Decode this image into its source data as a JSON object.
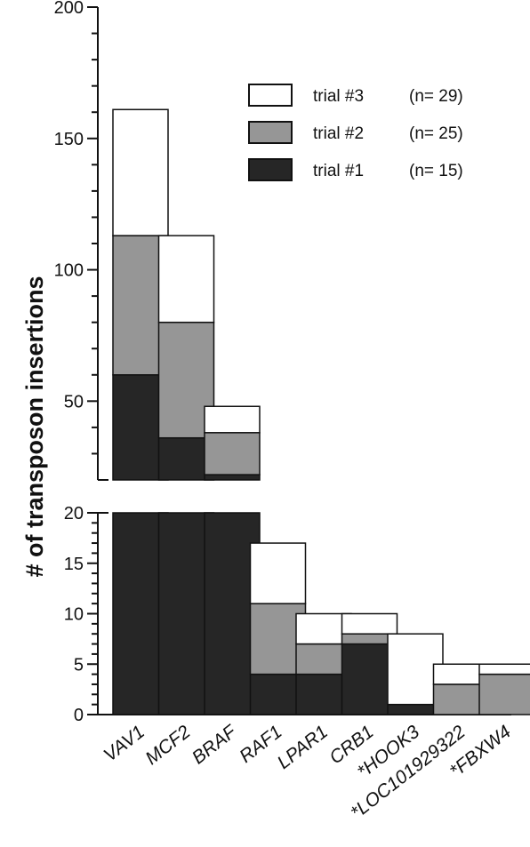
{
  "chart_data": {
    "type": "bar",
    "stacked": true,
    "broken_y_axis": true,
    "ylabel": "# of transposon insertions",
    "xlabel": "",
    "categories": [
      "VAV1",
      "MCF2",
      "BRAF",
      "RAF1",
      "LPAR1",
      "CRB1",
      "*HOOK3",
      "*LOC101929322",
      "*FBXW4"
    ],
    "series": [
      {
        "name": "trial #1",
        "n_label": "(n= 15)",
        "color": "#262626",
        "values": [
          60,
          36,
          22,
          4,
          4,
          7,
          1,
          0,
          0
        ]
      },
      {
        "name": "trial #2",
        "n_label": "(n= 25)",
        "color": "#969696",
        "values": [
          53,
          44,
          16,
          7,
          3,
          1,
          0,
          3,
          4
        ]
      },
      {
        "name": "trial #3",
        "n_label": "(n= 29)",
        "color": "#ffffff",
        "values": [
          48,
          33,
          10,
          6,
          3,
          2,
          7,
          2,
          1
        ]
      }
    ],
    "lower_axis": {
      "ylim": [
        0,
        20
      ],
      "ticks": [
        "0",
        "5",
        "10",
        "15",
        "20"
      ]
    },
    "upper_axis": {
      "ylim": [
        20,
        200
      ],
      "ticks": [
        "50",
        "100",
        "150",
        "200"
      ]
    },
    "legend_placement": "top-right",
    "grid": false
  }
}
